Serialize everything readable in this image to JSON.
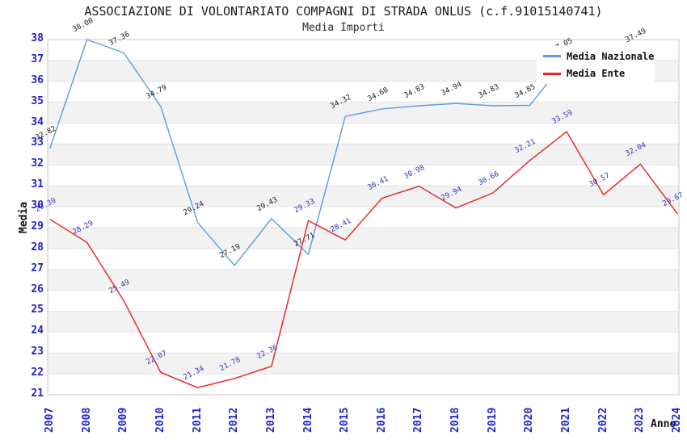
{
  "title": "ASSOCIAZIONE DI VOLONTARIATO COMPAGNI DI STRADA ONLUS (c.f.91015140741)",
  "subtitle": "Media Importi",
  "y_axis_title": "Media",
  "x_axis_title": "Anno",
  "legend": {
    "items": [
      {
        "label": "Media Nazionale",
        "color": "#5d9ae2"
      },
      {
        "label": "Media Ente",
        "color": "#e62222"
      }
    ]
  },
  "colors": {
    "national_line": "#5d9ae2",
    "ente_line": "#e62222",
    "national_label": "#1a1a1a",
    "ente_label": "#3333bb",
    "axis_tick_text": "#2222cc"
  },
  "chart_data": {
    "type": "line",
    "x": [
      2007,
      2008,
      2009,
      2010,
      2011,
      2012,
      2013,
      2014,
      2015,
      2016,
      2017,
      2018,
      2019,
      2020,
      2021,
      2022,
      2023,
      2024
    ],
    "ylim": [
      21,
      38
    ],
    "y_ticks": [
      21,
      22,
      23,
      24,
      25,
      26,
      27,
      28,
      29,
      30,
      31,
      32,
      33,
      34,
      35,
      36,
      37,
      38
    ],
    "grid": "horizontal-bands",
    "legend_position": "top-right",
    "series": [
      {
        "name": "Media Nazionale",
        "color": "#5d9ae2",
        "label_color": "#1a1a1a",
        "values": [
          32.82,
          38.0,
          37.36,
          34.79,
          29.24,
          27.19,
          29.43,
          27.71,
          34.32,
          34.68,
          34.83,
          34.94,
          34.83,
          34.85,
          37.05,
          null,
          37.49,
          null
        ]
      },
      {
        "name": "Media Ente",
        "color": "#e62222",
        "label_color": "#3333bb",
        "values": [
          29.39,
          28.29,
          25.49,
          22.07,
          21.34,
          21.78,
          22.36,
          29.33,
          28.41,
          30.41,
          30.98,
          29.94,
          30.66,
          32.21,
          33.59,
          30.57,
          32.04,
          29.67
        ]
      }
    ]
  }
}
